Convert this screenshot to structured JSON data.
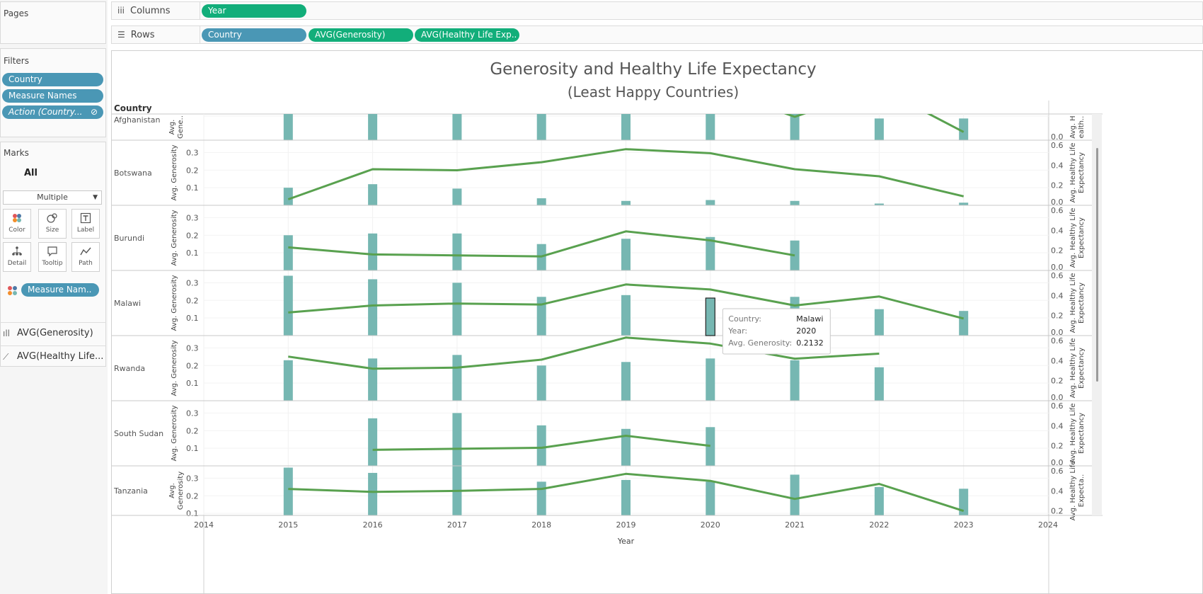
{
  "shelves": {
    "pages_label": "Pages",
    "columns_label": "Columns",
    "columns_pills": [
      "Year"
    ],
    "rows_label": "Rows",
    "rows_pills": [
      "Country",
      "AVG(Generosity)",
      "AVG(Healthy Life Exp.."
    ]
  },
  "filters": {
    "title": "Filters",
    "items": [
      "Country",
      "Measure Names",
      "Action (Country..."
    ]
  },
  "marks": {
    "title": "Marks",
    "all_label": "All",
    "type": "Multiple",
    "buttons": [
      "Color",
      "Size",
      "Label",
      "Detail",
      "Tooltip",
      "Path"
    ],
    "color_pill": "Measure Nam..",
    "measures": [
      "AVG(Generosity)",
      "AVG(Healthy Life..."
    ]
  },
  "colors": {
    "bar": "#76b7b2",
    "line": "#59a14f",
    "pill_blue": "#4a97b5",
    "pill_green": "#12ae7a"
  },
  "chart_data": {
    "type": "bar",
    "title": "Generosity and Healthy Life Expectancy",
    "subtitle": "(Least Happy Countries)",
    "row_header": "Country",
    "xlabel": "Year",
    "x_ticks": [
      2014,
      2015,
      2016,
      2017,
      2018,
      2019,
      2020,
      2021,
      2022,
      2023,
      2024
    ],
    "years": [
      2015,
      2016,
      2017,
      2018,
      2019,
      2020,
      2021,
      2022,
      2023
    ],
    "left_axis": {
      "range": [
        0,
        0.37
      ],
      "ticks": [
        "0.1",
        "0.2",
        "0.3"
      ]
    },
    "right_axis": {
      "range": [
        0,
        0.65
      ],
      "ticks": [
        "0.0",
        "0.2",
        "0.4",
        "0.6"
      ]
    },
    "panes": [
      {
        "country": "Afghanistan",
        "left_axis_title": "Avg. Gene..",
        "right_axis_title": "Avg. H ealth..",
        "generosity": [
          0.36,
          0.33,
          0.31,
          0.23,
          0.22,
          0.13,
          0.12,
          0.09,
          0.09
        ],
        "healthy_life": [
          0.36,
          0.27,
          0.28,
          0.34,
          0.41,
          0.39,
          0.17,
          0.38,
          0.06
        ]
      },
      {
        "country": "Botswana",
        "left_axis_title": "Avg. Generosity",
        "right_axis_title": "Avg. Healthy Life Expectancy",
        "generosity": [
          0.1,
          0.12,
          0.095,
          0.04,
          0.025,
          0.03,
          0.025,
          0.01,
          0.015
        ],
        "healthy_life": [
          0.06,
          0.36,
          0.35,
          0.43,
          0.56,
          0.52,
          0.36,
          0.29,
          0.09
        ]
      },
      {
        "country": "Burundi",
        "left_axis_title": "Avg. Generosity",
        "right_axis_title": "Avg. Healthy Life Expectancy",
        "generosity": [
          0.2,
          0.21,
          0.21,
          0.15,
          0.18,
          0.19,
          0.17,
          null,
          null
        ],
        "healthy_life": [
          0.23,
          0.16,
          0.15,
          0.14,
          0.39,
          0.3,
          0.15,
          null,
          null
        ]
      },
      {
        "country": "Malawi",
        "left_axis_title": "Avg. Generosity",
        "right_axis_title": "Avg. Healthy Life Expectancy",
        "generosity": [
          0.34,
          0.32,
          0.3,
          0.22,
          0.23,
          0.2132,
          0.22,
          0.15,
          0.14
        ],
        "healthy_life": [
          0.23,
          0.3,
          0.32,
          0.31,
          0.51,
          0.46,
          0.3,
          0.39,
          0.17
        ]
      },
      {
        "country": "Rwanda",
        "left_axis_title": "Avg. Generosity",
        "right_axis_title": "Avg. Healthy Life Expectancy",
        "generosity": [
          0.23,
          0.24,
          0.26,
          0.2,
          0.22,
          0.24,
          0.23,
          0.19,
          null
        ],
        "healthy_life": [
          0.44,
          0.32,
          0.33,
          0.41,
          0.63,
          0.57,
          0.42,
          0.47,
          null
        ]
      },
      {
        "country": "South Sudan",
        "left_axis_title": "Avg. Generosity",
        "right_axis_title": "Avg. Healthy Life Expectancy",
        "generosity": [
          null,
          0.27,
          0.3,
          0.23,
          0.21,
          0.22,
          null,
          null,
          null
        ],
        "healthy_life": [
          null,
          0.16,
          0.17,
          0.18,
          0.3,
          0.2,
          null,
          null,
          null
        ]
      },
      {
        "country": "Tanzania",
        "left_axis_title": "Avg. Generosity",
        "right_axis_title": "Avg. Healthy Life Expecta..",
        "generosity": [
          0.36,
          0.33,
          0.37,
          0.28,
          0.29,
          0.28,
          0.32,
          0.25,
          0.24
        ],
        "healthy_life": [
          0.42,
          0.39,
          0.4,
          0.42,
          0.57,
          0.5,
          0.32,
          0.47,
          0.2
        ]
      }
    ],
    "tooltip": {
      "labels": [
        "Country:",
        "Year:",
        "Avg. Generosity:"
      ],
      "values": [
        "Malawi",
        "2020",
        "0.2132"
      ]
    }
  }
}
